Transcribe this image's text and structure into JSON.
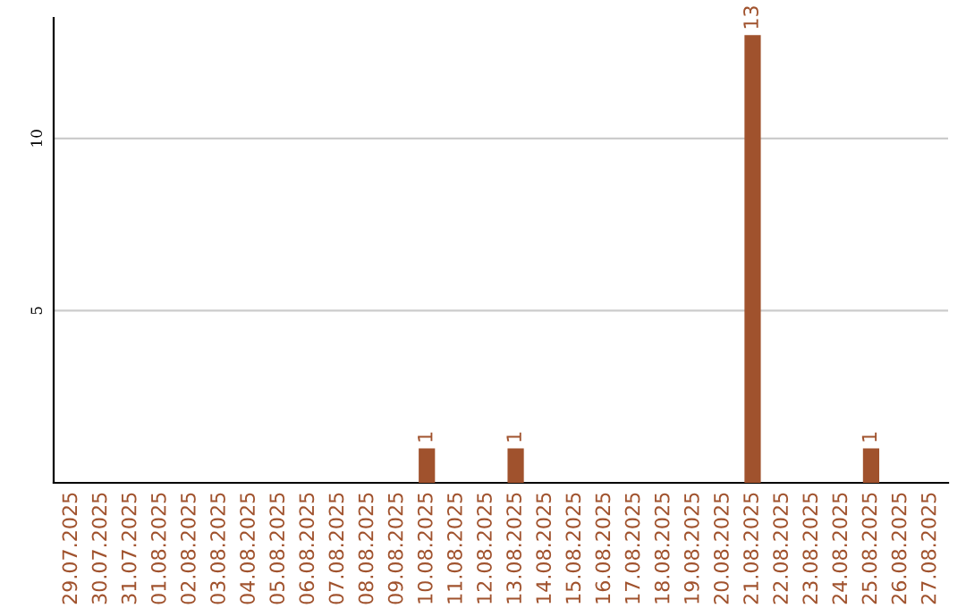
{
  "chart_data": {
    "type": "bar",
    "categories": [
      "29.07.2025",
      "30.07.2025",
      "31.07.2025",
      "01.08.2025",
      "02.08.2025",
      "03.08.2025",
      "04.08.2025",
      "05.08.2025",
      "06.08.2025",
      "07.08.2025",
      "08.08.2025",
      "09.08.2025",
      "10.08.2025",
      "11.08.2025",
      "12.08.2025",
      "13.08.2025",
      "14.08.2025",
      "15.08.2025",
      "16.08.2025",
      "17.08.2025",
      "18.08.2025",
      "19.08.2025",
      "20.08.2025",
      "21.08.2025",
      "22.08.2025",
      "23.08.2025",
      "24.08.2025",
      "25.08.2025",
      "26.08.2025",
      "27.08.2025"
    ],
    "values": [
      0,
      0,
      0,
      0,
      0,
      0,
      0,
      0,
      0,
      0,
      0,
      0,
      1,
      0,
      0,
      1,
      0,
      0,
      0,
      0,
      0,
      0,
      0,
      13,
      0,
      0,
      0,
      1,
      0,
      0
    ],
    "value_labels": [
      null,
      null,
      null,
      null,
      null,
      null,
      null,
      null,
      null,
      null,
      null,
      null,
      "1",
      null,
      null,
      "1",
      null,
      null,
      null,
      null,
      null,
      null,
      null,
      "13",
      null,
      null,
      null,
      "1",
      null,
      null
    ],
    "color": "#a0522d",
    "ylim": [
      0,
      13.5
    ],
    "yticks": [
      5,
      10
    ],
    "grid": "y"
  }
}
